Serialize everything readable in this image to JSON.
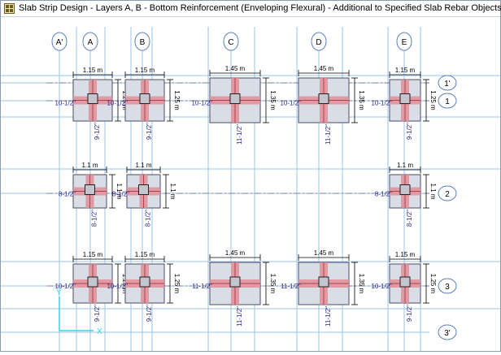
{
  "window": {
    "title": "Slab Strip Design - Layers A, B - Bottom Reinforcement (Enveloping Flexural)  - Additional to Specified Slab Rebar Objects",
    "icon": "grid-app-icon"
  },
  "grid": {
    "columns": [
      "A'",
      "A",
      "B",
      "C",
      "D",
      "E"
    ],
    "rows": [
      "1'",
      "1",
      "2",
      "3",
      "3'"
    ]
  },
  "axes": {
    "x_label": "X",
    "y_label": "Y"
  },
  "colors": {
    "grid_line": "#9ec3e6",
    "bubble": "#5b7fb5",
    "strip": "#e08e96",
    "strip_edge": "#b0404d",
    "panel": "#d9dde6",
    "label_blue": "#2a2a8a",
    "axis": "#33d6e6"
  },
  "panels": [
    {
      "id": "A1",
      "width": "1.15 m",
      "depth": "1.25 m",
      "x_rebar": "10-1/2\"",
      "y_rebar": "9-1/2\""
    },
    {
      "id": "B1",
      "width": "1.15 m",
      "depth": "1.25 m",
      "x_rebar": "10-1/2\"",
      "y_rebar": "9-1/2\""
    },
    {
      "id": "C1",
      "width": "1.45 m",
      "depth": "1.35 m",
      "x_rebar": "10-1/2\"",
      "y_rebar": "11-1/2\""
    },
    {
      "id": "D1",
      "width": "1.45 m",
      "depth": "1.35 m",
      "x_rebar": "10-1/2\"",
      "y_rebar": "11-1/2\""
    },
    {
      "id": "E1",
      "width": "1.15 m",
      "depth": "1.25 m",
      "x_rebar": "10-1/2\"",
      "y_rebar": "9-1/2\""
    },
    {
      "id": "A2",
      "width": "1.1 m",
      "depth": "1.1 m",
      "x_rebar": "8-1/2\"",
      "y_rebar": "8-1/2\""
    },
    {
      "id": "B2",
      "width": "1.1 m",
      "depth": "1.1 m",
      "x_rebar": "8-1/2\"",
      "y_rebar": "8-1/2\""
    },
    {
      "id": "E2",
      "width": "1.1 m",
      "depth": "1.1 m",
      "x_rebar": "8-1/2\"",
      "y_rebar": "8-1/2\""
    },
    {
      "id": "A3",
      "width": "1.15 m",
      "depth": "1.25 m",
      "x_rebar": "10-1/2\"",
      "y_rebar": "9-1/2\""
    },
    {
      "id": "B3",
      "width": "1.15 m",
      "depth": "1.25 m",
      "x_rebar": "10-1/2\"",
      "y_rebar": "9-1/2\""
    },
    {
      "id": "C3",
      "width": "1.45 m",
      "depth": "1.35 m",
      "x_rebar": "11-1/2\"",
      "y_rebar": "11-1/2\""
    },
    {
      "id": "D3",
      "width": "1.45 m",
      "depth": "1.35 m",
      "x_rebar": "11-1/2\"",
      "y_rebar": "11-1/2\""
    },
    {
      "id": "E3",
      "width": "1.15 m",
      "depth": "1.25 m",
      "x_rebar": "10-1/2\"",
      "y_rebar": "9-1/2\""
    }
  ]
}
